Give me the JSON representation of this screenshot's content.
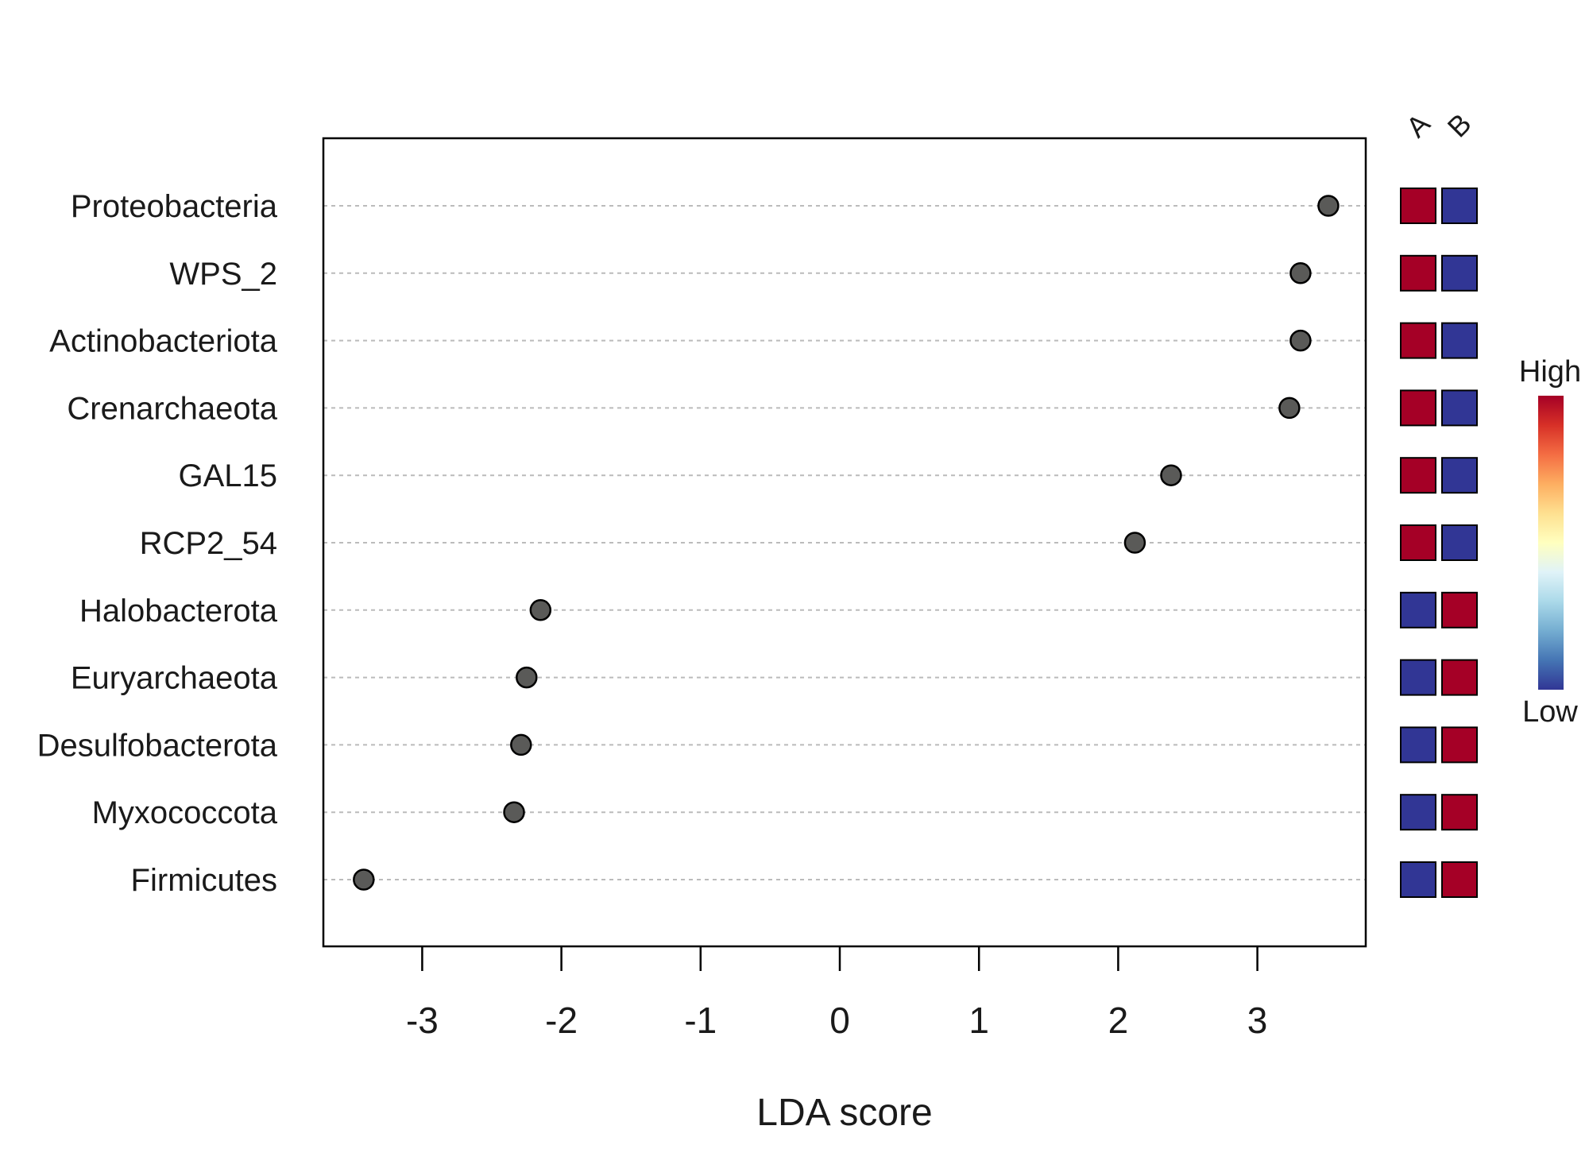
{
  "chart_data": {
    "type": "scatter",
    "title": "",
    "xlabel": "LDA score",
    "ylabel": "",
    "xlim": [
      -3.7,
      3.8
    ],
    "xticks": [
      -3,
      -2,
      -1,
      0,
      1,
      2,
      3
    ],
    "xtick_labels": [
      "-3",
      "-2",
      "-1",
      "0",
      "1",
      "2",
      "3"
    ],
    "grid": "horizontal dashed",
    "categories": [
      "Proteobacteria",
      "WPS_2",
      "Actinobacteriota",
      "Crenarchaeota",
      "GAL15",
      "RCP2_54",
      "Halobacterota",
      "Euryarchaeota",
      "Desulfobacterota",
      "Myxococcota",
      "Firmicutes"
    ],
    "values": [
      3.51,
      3.31,
      3.31,
      3.23,
      2.38,
      2.12,
      -2.15,
      -2.25,
      -2.29,
      -2.34,
      -3.42
    ],
    "heatmap": {
      "columns": [
        "A",
        "B"
      ],
      "levels": [
        [
          "High",
          "Low"
        ],
        [
          "High",
          "Low"
        ],
        [
          "High",
          "Low"
        ],
        [
          "High",
          "Low"
        ],
        [
          "High",
          "Low"
        ],
        [
          "High",
          "Low"
        ],
        [
          "Low",
          "High"
        ],
        [
          "Low",
          "High"
        ],
        [
          "Low",
          "High"
        ],
        [
          "Low",
          "High"
        ],
        [
          "Low",
          "High"
        ]
      ]
    },
    "colorbar": {
      "high_label": "High",
      "low_label": "Low",
      "stops": [
        "#313695",
        "#4575b4",
        "#74add1",
        "#abd9e9",
        "#e0f3f8",
        "#ffffbf",
        "#fee090",
        "#fdae61",
        "#f46d43",
        "#d73027",
        "#a50026"
      ]
    },
    "colors": {
      "high": "#a50026",
      "low": "#313695",
      "point": "#5a5a58",
      "grid": "#bbbbbb"
    }
  }
}
